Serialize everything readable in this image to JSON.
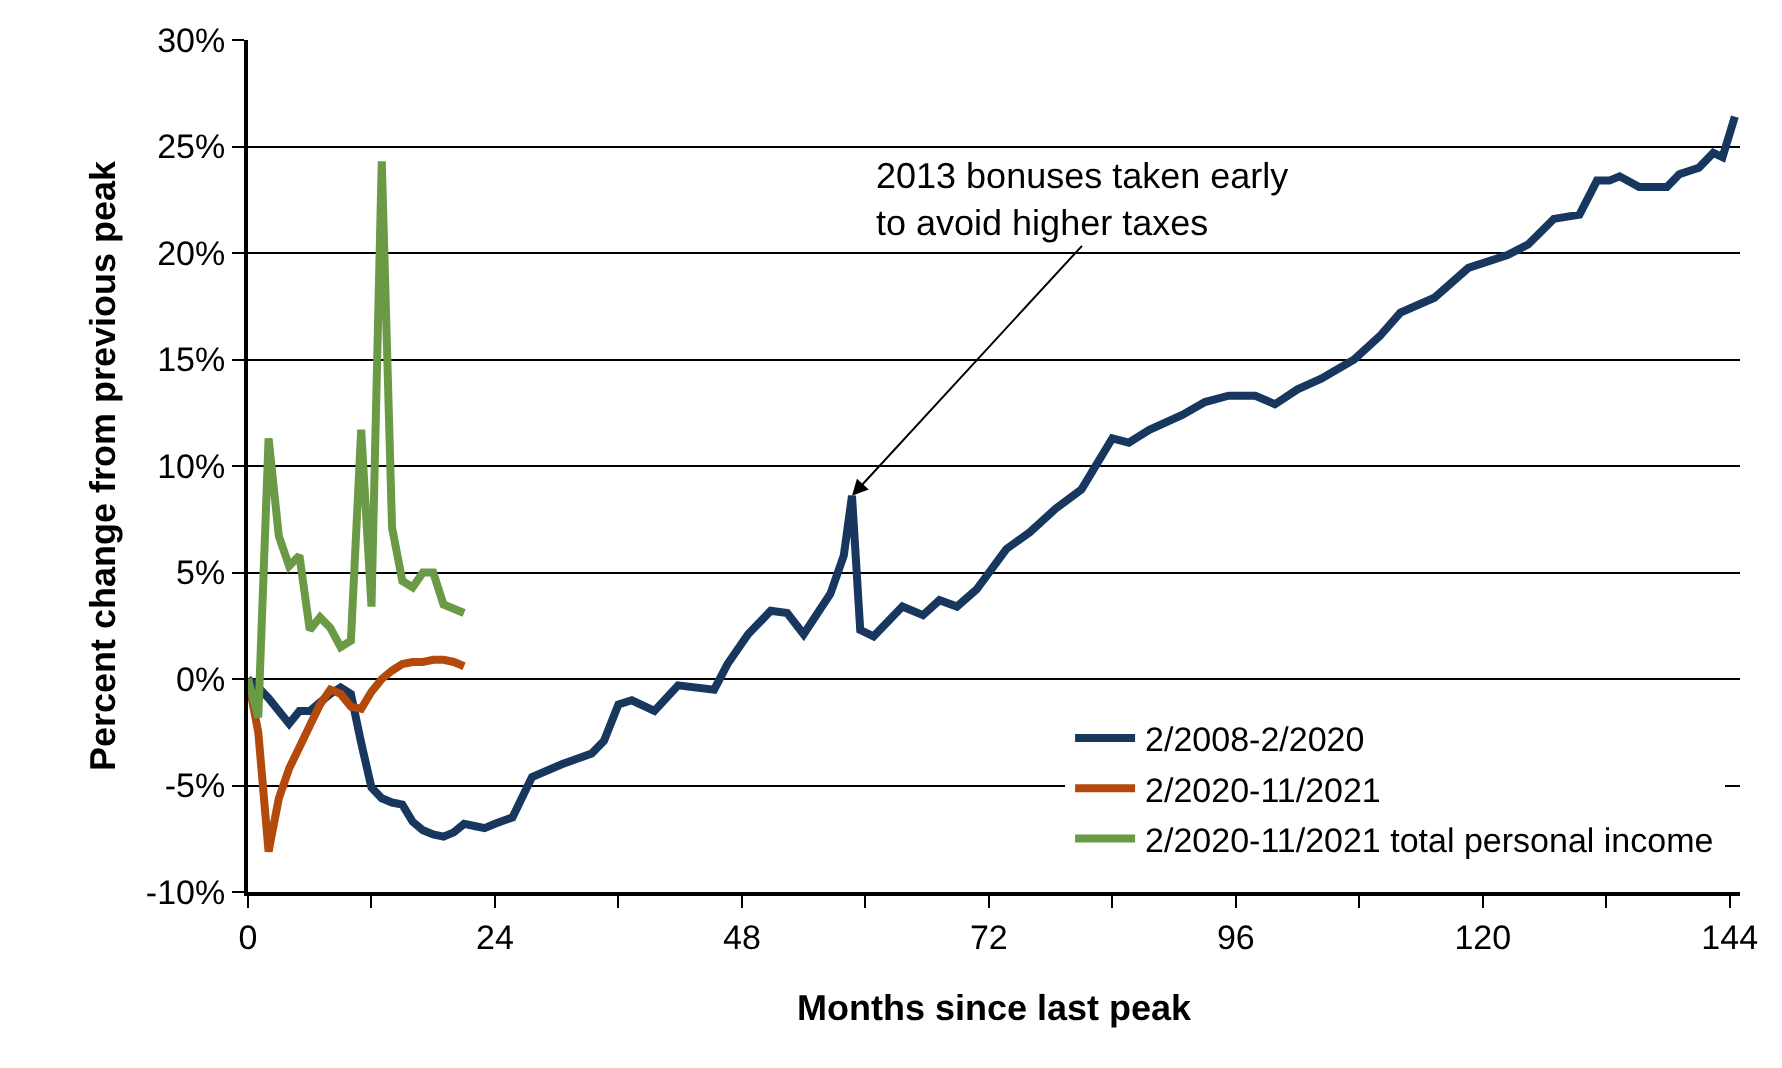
{
  "chart_data": {
    "type": "line",
    "xlabel": "Months since last peak",
    "ylabel": "Percent change from previous peak",
    "xlim": [
      0,
      145
    ],
    "ylim": [
      -10,
      30
    ],
    "xticks": [
      0,
      {
        "value": 12,
        "label": null
      },
      24,
      {
        "value": 36,
        "label": null
      },
      48,
      {
        "value": 60,
        "label": null
      },
      72,
      {
        "value": 84,
        "label": null
      },
      96,
      {
        "value": 108,
        "label": null
      },
      120,
      {
        "value": 132,
        "label": null
      },
      144
    ],
    "yticks": [
      {
        "value": -10,
        "label": "-10%"
      },
      {
        "value": -5,
        "label": "-5%"
      },
      {
        "value": 0,
        "label": "0%"
      },
      {
        "value": 5,
        "label": "5%"
      },
      {
        "value": 10,
        "label": "10%"
      },
      {
        "value": 15,
        "label": "15%"
      },
      {
        "value": 20,
        "label": "20%"
      },
      {
        "value": 25,
        "label": "25%"
      },
      {
        "value": 30,
        "label": "30%"
      }
    ],
    "grid": "y",
    "legend": "bottom right",
    "marker": "none",
    "line_style": "solid",
    "annotations": [
      {
        "text": "2013 bonuses taken early\nto avoid higher taxes",
        "x": 58.7,
        "y": 8.6
      }
    ],
    "series": [
      {
        "name": "2/2008-2/2020",
        "color": "#17375e",
        "x": [
          0,
          1,
          2,
          3,
          4,
          5,
          6,
          7,
          8,
          9,
          10,
          11,
          12,
          13,
          14,
          15,
          16,
          17,
          18,
          19,
          20,
          21,
          22,
          23,
          24,
          25.7,
          27.6,
          30.5,
          33.4,
          34.6,
          36,
          37.3,
          39.5,
          41.8,
          45.3,
          46.6,
          48.6,
          50.8,
          52.4,
          54,
          56.6,
          57.9,
          58.7,
          59.5,
          60.8,
          63.6,
          65.6,
          67.2,
          68.9,
          70.8,
          73.7,
          76,
          78.5,
          81,
          84,
          85.6,
          87.6,
          90.8,
          93,
          95.3,
          97.9,
          99.8,
          102,
          104.3,
          107.5,
          110,
          112,
          115.3,
          118.6,
          122.4,
          124.4,
          126.9,
          129.4,
          131.1,
          132.3,
          133.3,
          135.2,
          137.9,
          139.1,
          141,
          142.4,
          143.3,
          144.5
        ],
        "values": [
          0,
          -0.4,
          -0.9,
          -1.5,
          -2.1,
          -1.5,
          -1.5,
          -1.1,
          -0.7,
          -0.4,
          -0.7,
          -3,
          -5.1,
          -5.6,
          -5.8,
          -5.9,
          -6.7,
          -7.1,
          -7.3,
          -7.4,
          -7.2,
          -6.8,
          -6.9,
          -7,
          -6.8,
          -6.5,
          -4.6,
          -4,
          -3.5,
          -2.9,
          -1.2,
          -1,
          -1.5,
          -0.3,
          -0.5,
          0.7,
          2.1,
          3.2,
          3.1,
          2.1,
          4,
          5.8,
          8.6,
          2.3,
          2,
          3.4,
          3,
          3.7,
          3.4,
          4.2,
          6.1,
          6.9,
          8,
          8.9,
          11.3,
          11.1,
          11.7,
          12.4,
          13,
          13.3,
          13.3,
          12.9,
          13.6,
          14.1,
          15,
          16.1,
          17.2,
          17.9,
          19.3,
          19.9,
          20.4,
          21.6,
          21.8,
          23.4,
          23.4,
          23.6,
          23.1,
          23.1,
          23.7,
          24,
          24.7,
          24.5,
          26.4
        ]
      },
      {
        "name": "2/2020-11/2021",
        "color": "#b34a0c",
        "x": [
          0,
          1,
          2,
          3,
          4,
          5,
          6,
          7,
          8,
          9,
          10,
          11,
          12,
          13,
          14,
          15,
          16,
          17,
          18,
          19,
          20,
          21
        ],
        "values": [
          0,
          -2.5,
          -8.1,
          -5.6,
          -4.2,
          -3.2,
          -2.2,
          -1.2,
          -0.5,
          -0.7,
          -1.3,
          -1.4,
          -0.6,
          0,
          0.4,
          0.7,
          0.8,
          0.8,
          0.9,
          0.9,
          0.8,
          0.6
        ]
      },
      {
        "name": "2/2020-11/2021 total personal income",
        "color": "#6a9a45",
        "x": [
          0,
          1,
          2,
          3,
          4,
          5,
          6,
          7,
          8,
          9,
          10,
          11,
          12,
          13,
          14,
          15,
          16,
          17,
          18,
          19,
          20,
          21
        ],
        "values": [
          0,
          -1.8,
          11.3,
          6.7,
          5.3,
          5.8,
          2.3,
          2.9,
          2.4,
          1.5,
          1.8,
          11.7,
          3.4,
          24.3,
          7.1,
          4.6,
          4.3,
          5,
          5,
          3.5,
          3.3,
          3.1
        ]
      }
    ]
  }
}
